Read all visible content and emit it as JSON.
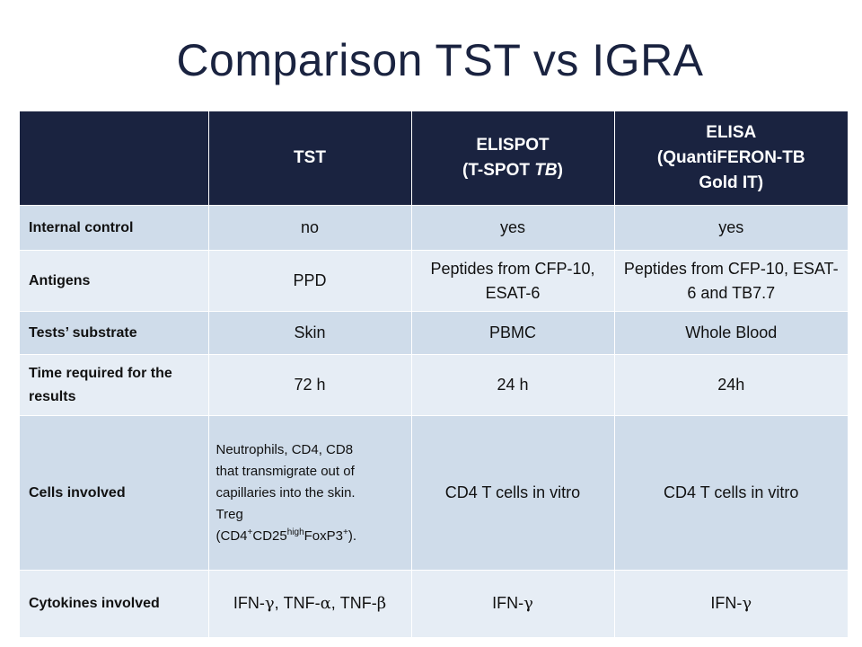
{
  "title": "Comparison TST vs IGRA",
  "headers": {
    "col0": "",
    "col1": "TST",
    "col2_line1": "ELISPOT",
    "col2_line2_pre": "(T-SPOT ",
    "col2_line2_em": "TB",
    "col2_line2_post": ")",
    "col3_line1": "ELISA",
    "col3_line2": "(QuantiFERON-TB",
    "col3_line3": "Gold IT)"
  },
  "rows": [
    {
      "label": "Internal control",
      "tst": "no",
      "elispot": "yes",
      "elisa": "yes"
    },
    {
      "label": "Antigens",
      "tst": "PPD",
      "elispot": "Peptides from CFP-10, ESAT-6",
      "elisa": "Peptides from CFP-10, ESAT-6 and TB7.7"
    },
    {
      "label": "Tests’ substrate",
      "tst": "Skin",
      "elispot": "PBMC",
      "elisa": "Whole Blood"
    },
    {
      "label": "Time required for the results",
      "tst": "72 h",
      "elispot": "24 h",
      "elisa": "24h"
    },
    {
      "label": "Cells involved",
      "tst_line1": "Neutrophils, CD4, CD8",
      "tst_line2": "that transmigrate out of",
      "tst_line3": "capillaries into the skin.",
      "tst_line4": "Treg",
      "tst_line5": {
        "open": "(CD4",
        "plus1": "+",
        "cd25": "CD25",
        "high": "high",
        "foxp3": "FoxP3",
        "plus2": "+",
        "close": ")."
      },
      "elispot": "CD4 T cells in vitro",
      "elisa": "CD4 T cells in vitro"
    },
    {
      "label": "Cytokines involved",
      "tst": {
        "ifn": "IFN-",
        "gamma": "γ",
        "tnf1": ", TNF-",
        "alpha": "α",
        "tnf2": ", TNF-",
        "beta": "β"
      },
      "elispot": {
        "ifn": "IFN-",
        "gamma": "γ"
      },
      "elisa": {
        "ifn": "IFN-",
        "gamma": "γ"
      }
    }
  ]
}
